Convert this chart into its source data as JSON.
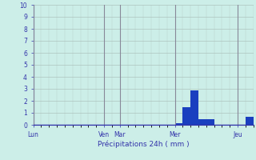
{
  "title": "",
  "xlabel": "Précipitations 24h ( mm )",
  "ylabel": "",
  "background_color": "#cceee8",
  "bar_color": "#1a3fbf",
  "ylim": [
    0,
    10
  ],
  "yticks": [
    0,
    1,
    2,
    3,
    4,
    5,
    6,
    7,
    8,
    9,
    10
  ],
  "day_labels": [
    "Lun",
    "Ven",
    "Mar",
    "Mer",
    "Jeu"
  ],
  "day_positions": [
    0,
    9,
    11,
    18,
    26
  ],
  "total_bars": 28,
  "bars": [
    0,
    0,
    0,
    0,
    0,
    0,
    0,
    0,
    0,
    0,
    0,
    0,
    0,
    0,
    0,
    0,
    0,
    0,
    0.15,
    1.5,
    2.9,
    0.5,
    0.45,
    0,
    0,
    0,
    0,
    0.7
  ],
  "grid_color": "#aabfbb",
  "tick_color": "#3333aa",
  "label_color": "#3333aa",
  "separator_color": "#888899",
  "axis_color": "#3333aa"
}
